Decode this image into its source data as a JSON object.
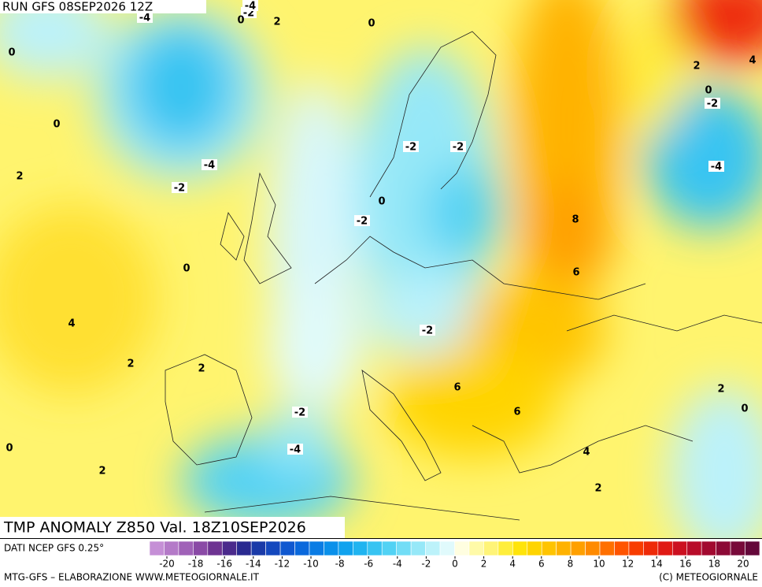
{
  "header": {
    "run": "RUN GFS 08SEP2026 12Z"
  },
  "map": {
    "title": "TMP ANOMALY Z850 Val. 18Z10SEP2026",
    "contour_labels": [
      -4,
      -2,
      -4,
      0,
      2,
      0,
      0,
      0,
      -4,
      -2,
      2,
      -2,
      -2,
      0,
      -2,
      8,
      6,
      0,
      4,
      -2,
      2,
      2,
      6,
      6,
      -2,
      -4,
      0,
      2,
      4,
      2,
      2,
      0,
      2,
      4,
      0,
      -2,
      -4
    ]
  },
  "legend": {
    "source": "DATI NCEP GFS 0.25°",
    "ticks": [
      -20,
      -18,
      -16,
      -14,
      -12,
      -10,
      -8,
      -6,
      -4,
      -2,
      0,
      2,
      4,
      6,
      8,
      10,
      12,
      14,
      16,
      18,
      20
    ],
    "colors": [
      "#c58fd6",
      "#b47ac8",
      "#a062b8",
      "#8a4aa6",
      "#6e3492",
      "#4b2a8c",
      "#2a2a90",
      "#1a3aa8",
      "#1448be",
      "#1058d0",
      "#0a68dc",
      "#0a7ce4",
      "#0a90ea",
      "#10a2ee",
      "#20b4f0",
      "#38c4f2",
      "#52d2f4",
      "#72ddf6",
      "#96e8f8",
      "#bcf2fa",
      "#e0fafc",
      "#fffee0",
      "#fffaa8",
      "#fff478",
      "#ffee3c",
      "#ffe40a",
      "#ffd400",
      "#ffc400",
      "#ffb200",
      "#ffa000",
      "#ff8a00",
      "#ff7000",
      "#ff5400",
      "#f83c00",
      "#ee2a08",
      "#e01a14",
      "#cc1020",
      "#b80c2a",
      "#a20a30",
      "#8c0a36",
      "#780a3a",
      "#64083a"
    ]
  },
  "footer": {
    "credit": "MTG-GFS – ELABORAZIONE WWW.METEOGIORNALE.IT",
    "copyright": "(C) METEOGIORNALE"
  }
}
